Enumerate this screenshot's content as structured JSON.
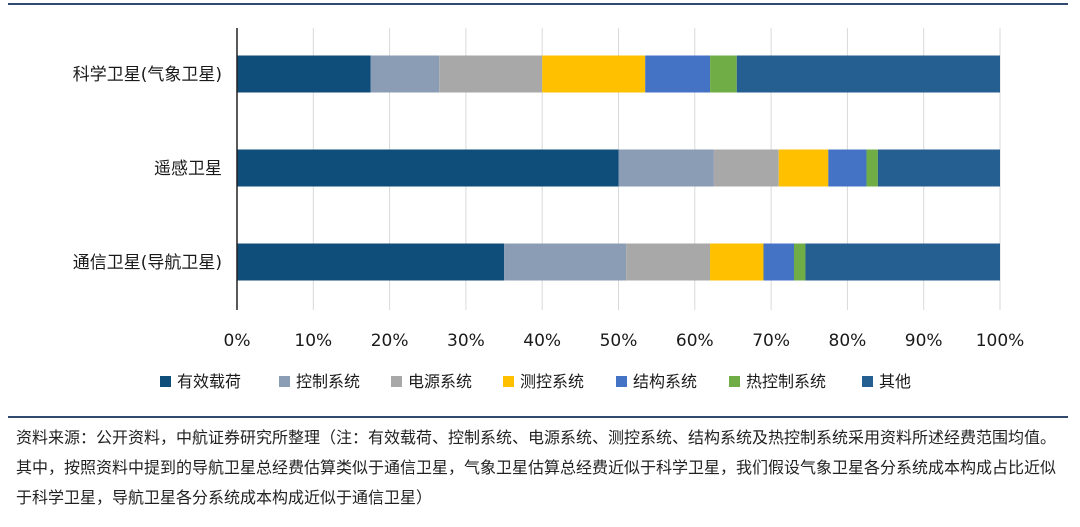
{
  "chart_data": {
    "type": "bar",
    "orientation": "horizontal",
    "stacked": true,
    "categories": [
      "科学卫星(气象卫星)",
      "遥感卫星",
      "通信卫星(导航卫星)"
    ],
    "series": [
      {
        "name": "有效载荷",
        "color": "#0f4d7a",
        "values": [
          17.5,
          50,
          35
        ]
      },
      {
        "name": "控制系统",
        "color": "#8a9db5",
        "values": [
          9,
          12.5,
          16
        ]
      },
      {
        "name": "电源系统",
        "color": "#a8a8a8",
        "values": [
          13.5,
          8.5,
          11
        ]
      },
      {
        "name": "测控系统",
        "color": "#ffc000",
        "values": [
          13.5,
          6.5,
          7
        ]
      },
      {
        "name": "结构系统",
        "color": "#4472c4",
        "values": [
          8.5,
          5,
          4
        ]
      },
      {
        "name": "热控制系统",
        "color": "#70ad47",
        "values": [
          3.5,
          1.5,
          1.5
        ]
      },
      {
        "name": "其他",
        "color": "#255e91",
        "values": [
          34.5,
          16,
          25.5
        ]
      }
    ],
    "xlim": [
      0,
      100
    ],
    "xticks": [
      "0%",
      "10%",
      "20%",
      "30%",
      "40%",
      "50%",
      "60%",
      "70%",
      "80%",
      "90%",
      "100%"
    ],
    "grid": true,
    "legend": "bottom"
  },
  "source_note": "资料来源：公开资料，中航证券研究所整理（注：有效载荷、控制系统、电源系统、测控系统、结构系统及热控制系统采用资料所述经费范围均值。其中，按照资料中提到的导航卫星总经费估算类似于通信卫星，气象卫星估算总经费近似于科学卫星，我们假设气象卫星各分系统成本构成占比近似于科学卫星，导航卫星各分系统成本构成近似于通信卫星）"
}
